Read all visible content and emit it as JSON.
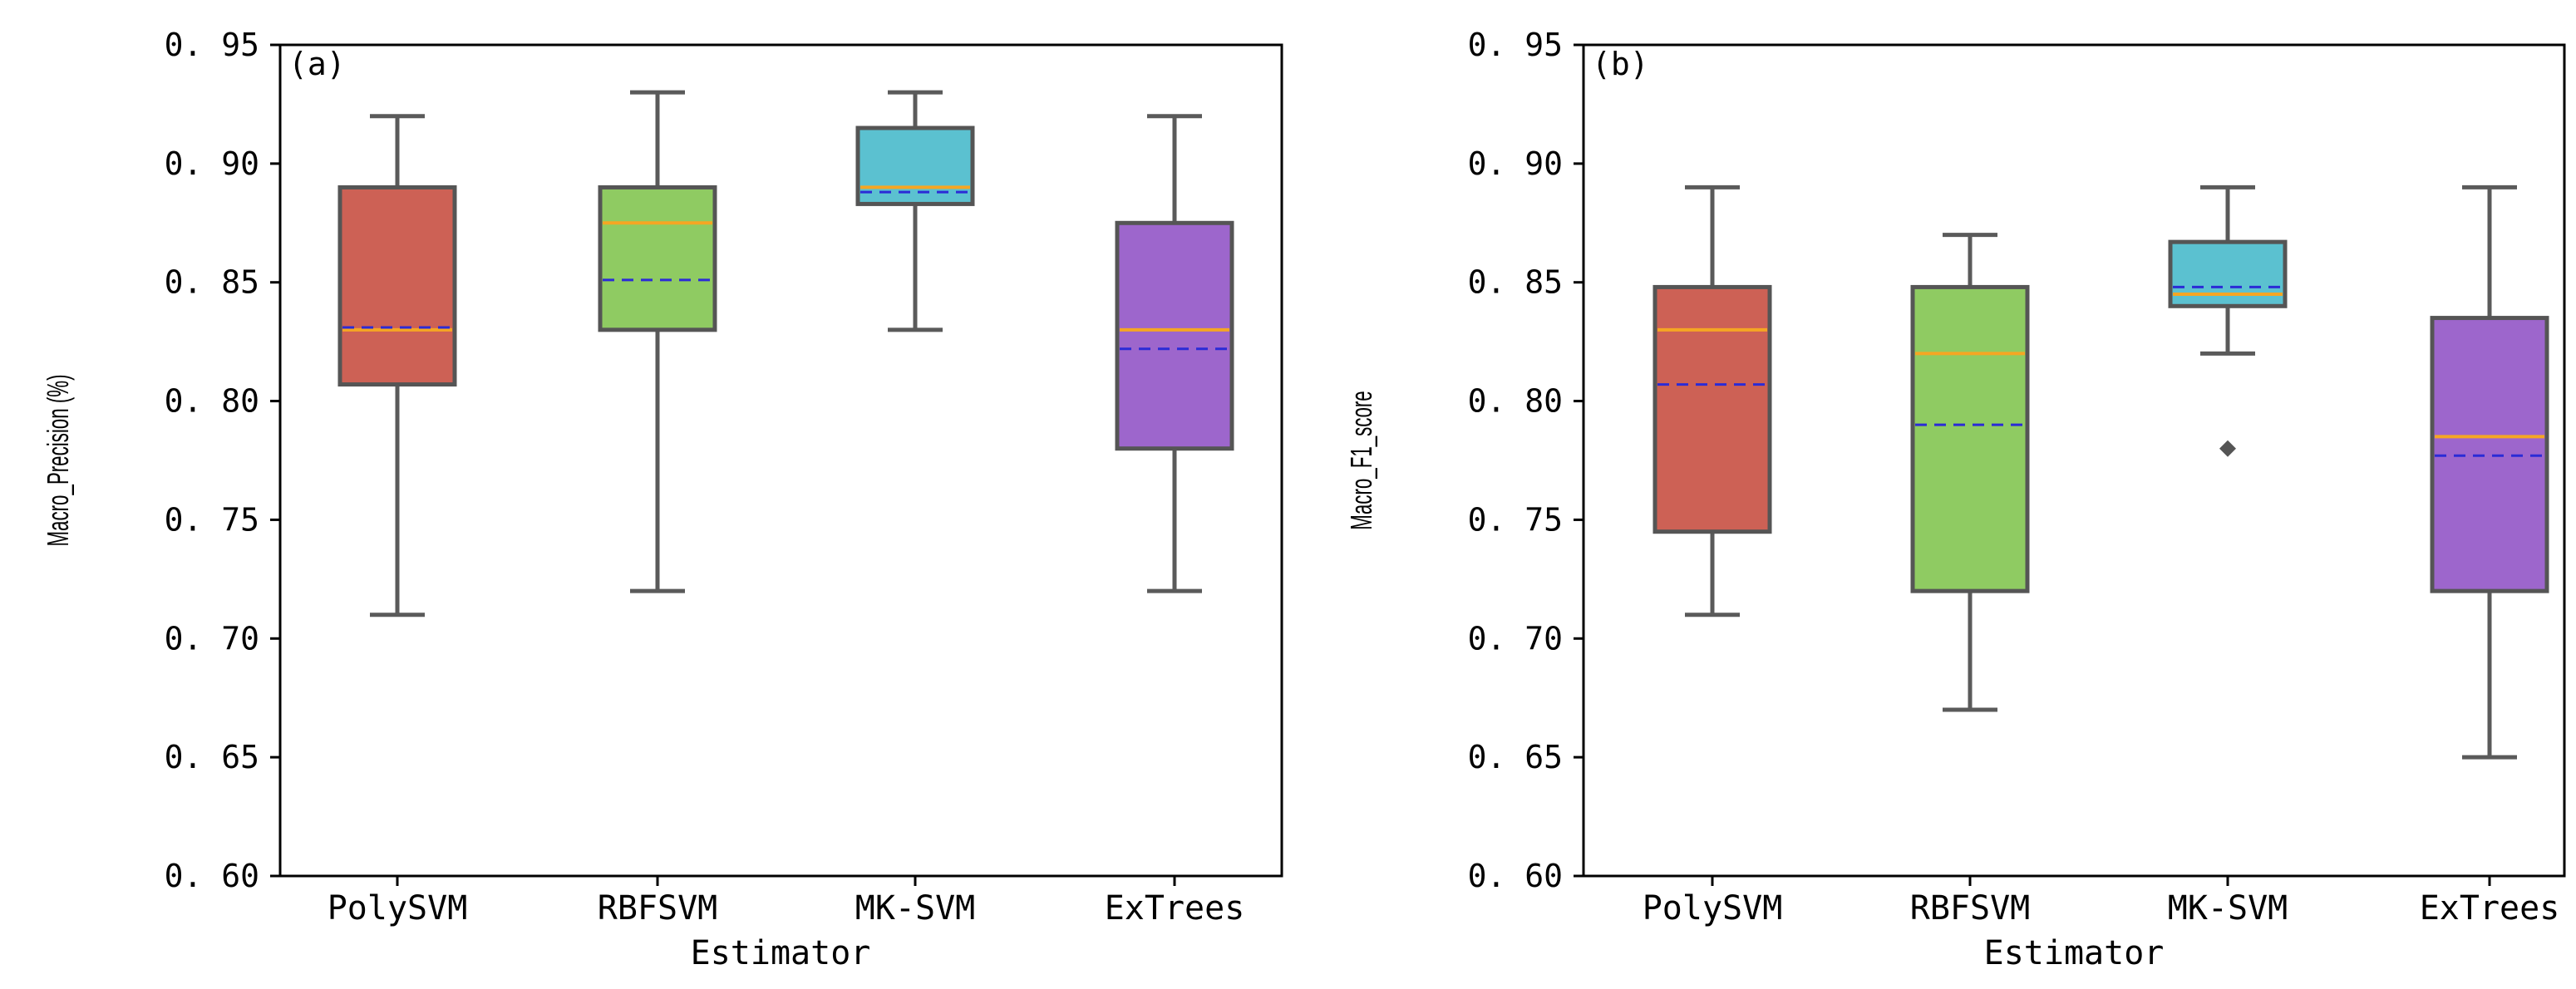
{
  "chart_data": [
    {
      "type": "box",
      "panel_label": "(a)",
      "xlabel": "Estimator",
      "ylabel": "Macro_Precision (%)",
      "ylim": [
        0.6,
        0.95
      ],
      "yticks": [
        "0.60",
        "0.65",
        "0.70",
        "0.75",
        "0.80",
        "0.85",
        "0.90",
        "0.95"
      ],
      "categories": [
        "PolySVM",
        "RBFSVM",
        "MK-SVM",
        "ExTrees"
      ],
      "boxes": [
        {
          "name": "PolySVM",
          "color": "#cd6155",
          "whisker_low": 0.71,
          "q1": 0.807,
          "median": 0.83,
          "mean": 0.831,
          "q3": 0.89,
          "whisker_high": 0.92,
          "outliers": []
        },
        {
          "name": "RBFSVM",
          "color": "#8fcb62",
          "whisker_low": 0.72,
          "q1": 0.83,
          "median": 0.875,
          "mean": 0.851,
          "q3": 0.89,
          "whisker_high": 0.93,
          "outliers": []
        },
        {
          "name": "MK-SVM",
          "color": "#5bc1d0",
          "whisker_low": 0.83,
          "q1": 0.883,
          "median": 0.89,
          "mean": 0.888,
          "q3": 0.915,
          "whisker_high": 0.93,
          "outliers": []
        },
        {
          "name": "ExTrees",
          "color": "#9d66cc",
          "whisker_low": 0.72,
          "q1": 0.78,
          "median": 0.83,
          "mean": 0.822,
          "q3": 0.875,
          "whisker_high": 0.92,
          "outliers": []
        }
      ]
    },
    {
      "type": "box",
      "panel_label": "(b)",
      "xlabel": "Estimator",
      "ylabel": "Macro_F1_score",
      "ylim": [
        0.6,
        0.95
      ],
      "yticks": [
        "0.60",
        "0.65",
        "0.70",
        "0.75",
        "0.80",
        "0.85",
        "0.90",
        "0.95"
      ],
      "categories": [
        "PolySVM",
        "RBFSVM",
        "MK-SVM",
        "ExTrees"
      ],
      "boxes": [
        {
          "name": "PolySVM",
          "color": "#cd6155",
          "whisker_low": 0.71,
          "q1": 0.745,
          "median": 0.83,
          "mean": 0.807,
          "q3": 0.848,
          "whisker_high": 0.89,
          "outliers": []
        },
        {
          "name": "RBFSVM",
          "color": "#8fcb62",
          "whisker_low": 0.67,
          "q1": 0.72,
          "median": 0.82,
          "mean": 0.79,
          "q3": 0.848,
          "whisker_high": 0.87,
          "outliers": []
        },
        {
          "name": "MK-SVM",
          "color": "#5bc1d0",
          "whisker_low": 0.82,
          "q1": 0.84,
          "median": 0.845,
          "mean": 0.848,
          "q3": 0.867,
          "whisker_high": 0.89,
          "outliers": [
            0.78
          ]
        },
        {
          "name": "ExTrees",
          "color": "#9d66cc",
          "whisker_low": 0.65,
          "q1": 0.72,
          "median": 0.785,
          "mean": 0.777,
          "q3": 0.835,
          "whisker_high": 0.89,
          "outliers": []
        }
      ]
    }
  ],
  "style": {
    "median_color": "#f5a623",
    "mean_color": "#2b2bd6",
    "whisker_color": "#5a5a5a",
    "box_edge_color": "#555555"
  }
}
